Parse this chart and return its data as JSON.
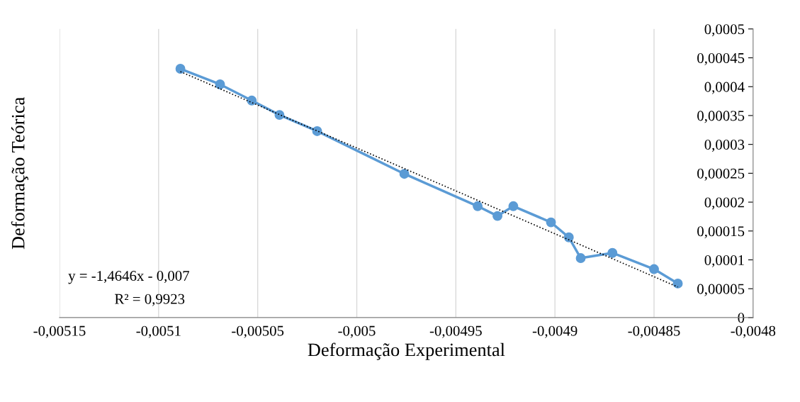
{
  "chart_data": {
    "type": "line",
    "xlabel": "Deformação Experimental",
    "ylabel": "Deformação Teórica",
    "xlim": [
      -0.00515,
      -0.0048
    ],
    "xticks": [
      {
        "value": -0.00515,
        "label": "-0,00515"
      },
      {
        "value": -0.0051,
        "label": "-0,0051"
      },
      {
        "value": -0.00505,
        "label": "-0,00505"
      },
      {
        "value": -0.005,
        "label": "-0,005"
      },
      {
        "value": -0.00495,
        "label": "-0,00495"
      },
      {
        "value": -0.0049,
        "label": "-0,0049"
      },
      {
        "value": -0.00485,
        "label": "-0,00485"
      },
      {
        "value": -0.0048,
        "label": "-0,0048"
      }
    ],
    "ylim": [
      0,
      0.0005
    ],
    "yticks": [
      {
        "value": 0,
        "label": "0"
      },
      {
        "value": 5e-05,
        "label": "0,00005"
      },
      {
        "value": 0.0001,
        "label": "0,0001"
      },
      {
        "value": 0.00015,
        "label": "0,00015"
      },
      {
        "value": 0.0002,
        "label": "0,0002"
      },
      {
        "value": 0.00025,
        "label": "0,00025"
      },
      {
        "value": 0.0003,
        "label": "0,0003"
      },
      {
        "value": 0.00035,
        "label": "0,00035"
      },
      {
        "value": 0.0004,
        "label": "0,0004"
      },
      {
        "value": 0.00045,
        "label": "0,00045"
      },
      {
        "value": 0.0005,
        "label": "0,0005"
      }
    ],
    "grid": "x",
    "legend": false,
    "series": [
      {
        "color": "#5b9bd5",
        "marker": "circle",
        "line_style": "solid",
        "x": [
          -0.005089,
          -0.005069,
          -0.005053,
          -0.005039,
          -0.00502,
          -0.004976,
          -0.004939,
          -0.004929,
          -0.004921,
          -0.004902,
          -0.004893,
          -0.004887,
          -0.004871,
          -0.00485,
          -0.004838
        ],
        "values": [
          0.000431,
          0.000404,
          0.000376,
          0.000351,
          0.000323,
          0.000249,
          0.000193,
          0.000176,
          0.000193,
          0.000165,
          0.000139,
          0.000103,
          0.000112,
          8.4e-05,
          5.9e-05
        ]
      },
      {
        "type": "line",
        "color": "#000000",
        "marker": "none",
        "line_style": "dotted",
        "x": [
          -0.005089,
          -0.004838
        ],
        "values": [
          0.000426,
          5.3e-05
        ]
      }
    ],
    "annotations": [
      "y = -1,4646x - 0,007",
      "R² = 0,9923"
    ]
  }
}
